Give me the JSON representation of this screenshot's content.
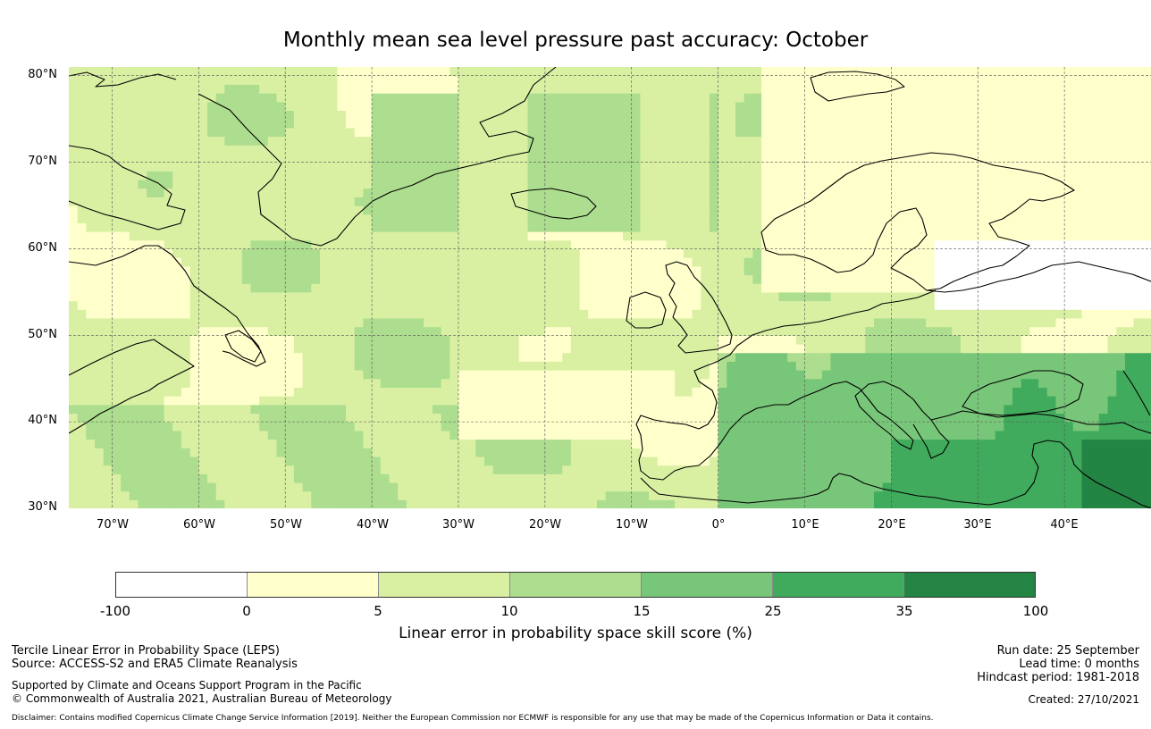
{
  "title": "Monthly mean sea level pressure past accuracy: October",
  "map": {
    "lat_labels": [
      "80°N",
      "70°N",
      "60°N",
      "50°N",
      "40°N",
      "30°N"
    ],
    "lon_labels": [
      "70°W",
      "60°W",
      "50°W",
      "40°W",
      "30°W",
      "20°W",
      "10°W",
      "0°",
      "10°E",
      "20°E",
      "30°E",
      "40°E"
    ],
    "lon_range_deg": [
      -75,
      50
    ],
    "lat_range_deg": [
      30,
      81
    ],
    "gridline_color": "#555555",
    "coastline_color": "#000000"
  },
  "colorbar": {
    "ticks": [
      "-100",
      "0",
      "5",
      "10",
      "15",
      "25",
      "35",
      "100"
    ],
    "colors": [
      "#ffffff",
      "#ffffcc",
      "#d9f0a3",
      "#addd8e",
      "#78c679",
      "#41ab5d",
      "#238443"
    ],
    "label": "Linear error in probability space skill score (%)"
  },
  "footer": {
    "left_line1": "Tercile Linear Error in Probability Space (LEPS)",
    "left_line2": "Source: ACCESS-S2 and ERA5 Climate Reanalysis",
    "left_line3": "Supported by Climate and Oceans Support Program in the Pacific",
    "left_line4": "© Commonwealth of Australia 2021, Australian Bureau of Meteorology",
    "right_line1": "Run date: 25 September",
    "right_line2": "Lead time: 0 months",
    "right_line3": "Hindcast period: 1981-2018",
    "right_line4": "Created: 27/10/2021",
    "disclaimer": "Disclaimer: Contains modified Copernicus Climate Change Service Information [2019]. Neither the European Commission nor ECMWF is responsible for any use that may be made of the Copernicus Information or Data it contains."
  }
}
